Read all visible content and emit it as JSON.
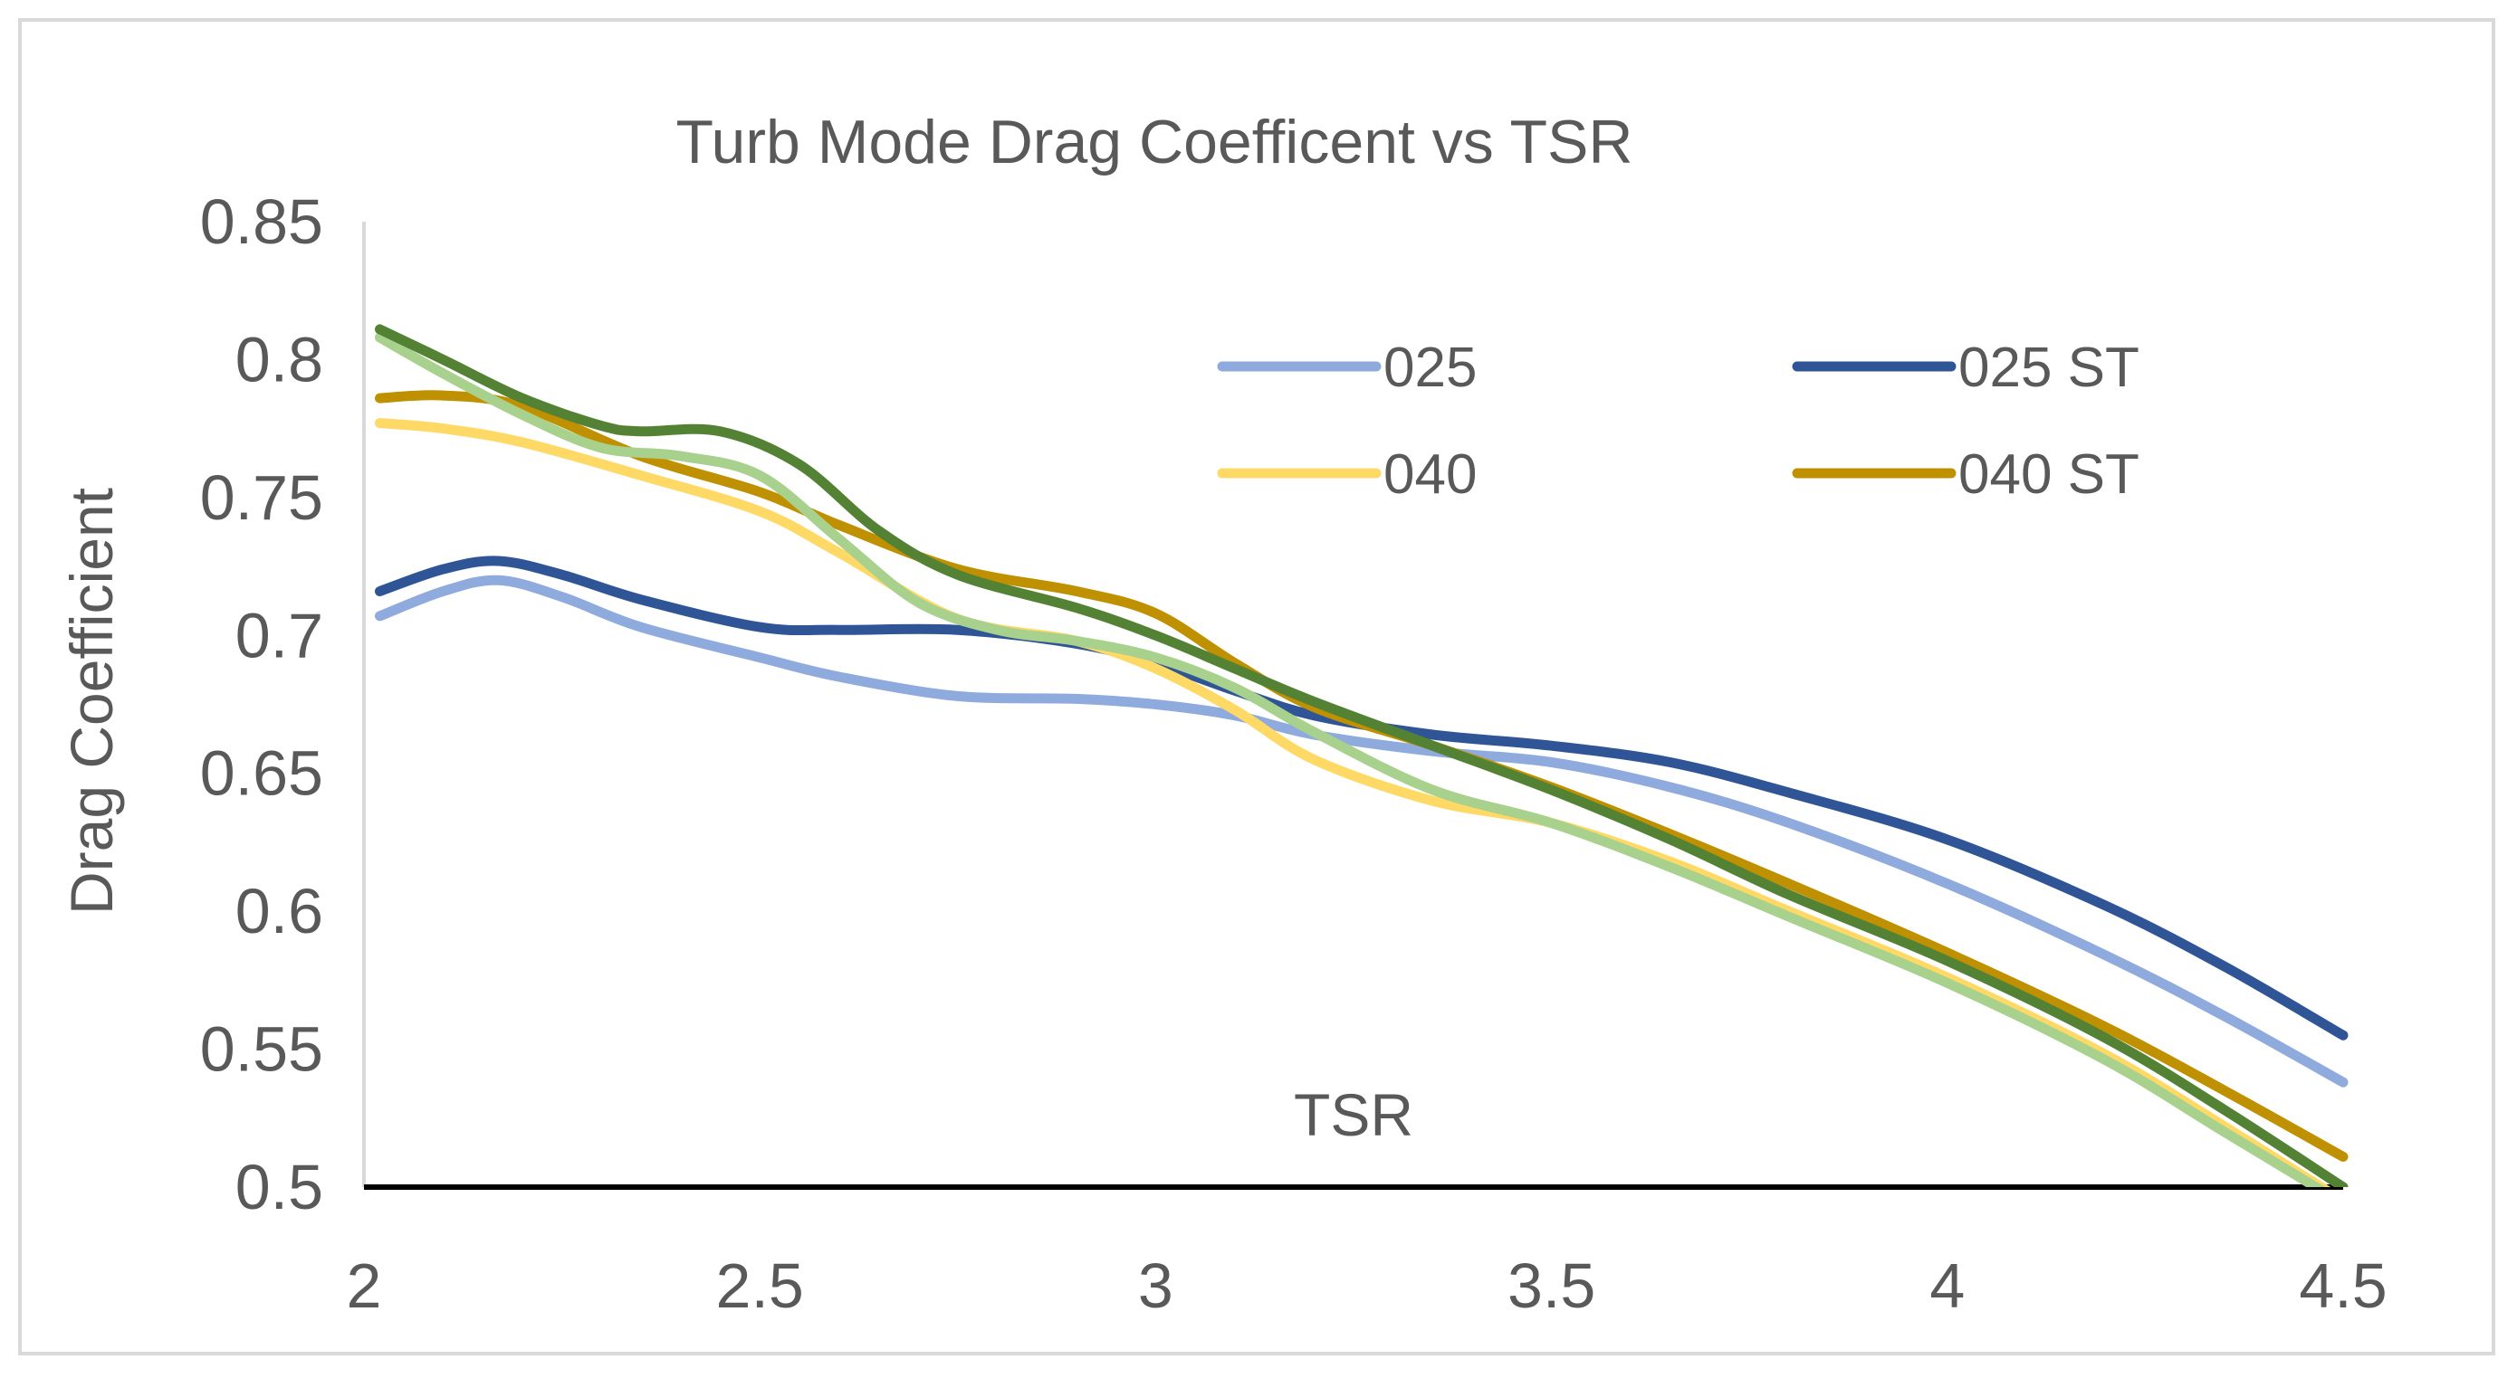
{
  "chart_data": {
    "type": "line",
    "title": "Turb Mode Drag Coefficent vs TSR",
    "xlabel": "TSR",
    "ylabel": "Drag Coefficient",
    "xlim": [
      2,
      4.5
    ],
    "ylim": [
      0.5,
      0.85
    ],
    "xticks": [
      "2",
      "2.5",
      "3",
      "3.5",
      "4",
      "4.5"
    ],
    "yticks": [
      "0.5",
      "0.55",
      "0.6",
      "0.65",
      "0.7",
      "0.75",
      "0.8",
      "0.85"
    ],
    "legend_position": "top-right",
    "series": [
      {
        "name": "025",
        "color": "#8faadc",
        "x": [
          2.02,
          2.1,
          2.17,
          2.25,
          2.35,
          2.5,
          2.6,
          2.75,
          2.9,
          3.0,
          3.1,
          3.2,
          3.35,
          3.5,
          3.65,
          3.8,
          4.0,
          4.2,
          4.35,
          4.5
        ],
        "y": [
          0.707,
          0.716,
          0.72,
          0.714,
          0.703,
          0.692,
          0.685,
          0.678,
          0.677,
          0.675,
          0.671,
          0.664,
          0.658,
          0.654,
          0.645,
          0.632,
          0.61,
          0.584,
          0.562,
          0.538
        ]
      },
      {
        "name": "025 ST",
        "color": "#2f5597",
        "x": [
          2.02,
          2.1,
          2.17,
          2.25,
          2.35,
          2.5,
          2.6,
          2.75,
          2.9,
          3.0,
          3.1,
          3.2,
          3.35,
          3.5,
          3.65,
          3.8,
          4.0,
          4.2,
          4.35,
          4.5
        ],
        "y": [
          0.716,
          0.724,
          0.727,
          0.722,
          0.713,
          0.703,
          0.702,
          0.702,
          0.697,
          0.69,
          0.68,
          0.671,
          0.664,
          0.66,
          0.654,
          0.643,
          0.626,
          0.602,
          0.58,
          0.555
        ]
      },
      {
        "name": "040",
        "color": "#ffd966",
        "x": [
          2.02,
          2.1,
          2.2,
          2.35,
          2.5,
          2.6,
          2.75,
          2.9,
          3.0,
          3.1,
          3.2,
          3.35,
          3.5,
          3.65,
          3.8,
          4.0,
          4.2,
          4.35,
          4.5
        ],
        "y": [
          0.777,
          0.775,
          0.77,
          0.758,
          0.745,
          0.73,
          0.706,
          0.698,
          0.688,
          0.673,
          0.655,
          0.64,
          0.632,
          0.618,
          0.6,
          0.576,
          0.548,
          0.522,
          0.495
        ]
      },
      {
        "name": "040 ST",
        "color": "#bf9000",
        "x": [
          2.02,
          2.1,
          2.2,
          2.35,
          2.5,
          2.6,
          2.75,
          2.9,
          3.0,
          3.1,
          3.2,
          3.35,
          3.5,
          3.65,
          3.8,
          4.0,
          4.2,
          4.35,
          4.5
        ],
        "y": [
          0.786,
          0.787,
          0.783,
          0.765,
          0.752,
          0.74,
          0.724,
          0.716,
          0.708,
          0.69,
          0.674,
          0.66,
          0.645,
          0.628,
          0.61,
          0.585,
          0.558,
          0.535,
          0.511
        ]
      },
      {
        "name": "",
        "color": "#a9d18e",
        "x": [
          2.02,
          2.1,
          2.2,
          2.3,
          2.4,
          2.5,
          2.6,
          2.7,
          2.8,
          2.9,
          3.0,
          3.1,
          3.2,
          3.35,
          3.5,
          3.65,
          3.8,
          4.0,
          4.2,
          4.35,
          4.5
        ],
        "y": [
          0.808,
          0.795,
          0.78,
          0.768,
          0.765,
          0.758,
          0.735,
          0.712,
          0.702,
          0.698,
          0.692,
          0.681,
          0.665,
          0.644,
          0.632,
          0.616,
          0.598,
          0.574,
          0.546,
          0.52,
          0.494
        ]
      },
      {
        "name": "",
        "color": "#548235",
        "x": [
          2.02,
          2.1,
          2.2,
          2.3,
          2.35,
          2.45,
          2.55,
          2.65,
          2.75,
          2.9,
          3.0,
          3.1,
          3.2,
          3.35,
          3.5,
          3.65,
          3.8,
          4.0,
          4.2,
          4.35,
          4.5
        ],
        "y": [
          0.811,
          0.8,
          0.786,
          0.776,
          0.774,
          0.774,
          0.762,
          0.738,
          0.722,
          0.71,
          0.7,
          0.688,
          0.676,
          0.66,
          0.644,
          0.626,
          0.606,
          0.582,
          0.554,
          0.528,
          0.5
        ]
      }
    ]
  }
}
